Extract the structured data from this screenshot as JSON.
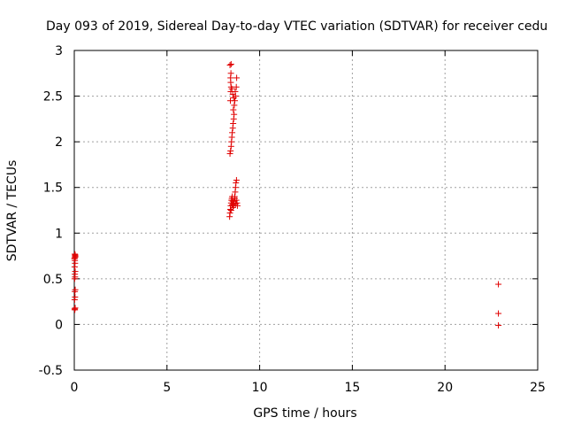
{
  "chart_data": {
    "type": "scatter",
    "title": "Day 093 of 2019, Sidereal Day-to-day VTEC variation (SDTVAR) for receiver cedu",
    "xlabel": "GPS time / hours",
    "ylabel": "SDTVAR / TECUs",
    "xlim": [
      0,
      25
    ],
    "ylim": [
      -0.5,
      3
    ],
    "xticks": [
      0,
      5,
      10,
      15,
      20,
      25
    ],
    "yticks": [
      -0.5,
      0,
      0.5,
      1,
      1.5,
      2,
      2.5,
      3
    ],
    "xtick_labels": [
      "0",
      "5",
      "10",
      "15",
      "20",
      "25"
    ],
    "ytick_labels": [
      "-0.5",
      "0",
      "0.5",
      "1",
      "1.5",
      "2",
      "2.5",
      "3"
    ],
    "grid": true,
    "marker": "plus",
    "marker_color": "#e00000",
    "series": [
      {
        "points": [
          [
            0.02,
            0.17
          ],
          [
            0.03,
            0.16
          ],
          [
            0.05,
            0.18
          ],
          [
            0.02,
            0.27
          ],
          [
            0.04,
            0.3
          ],
          [
            0.03,
            0.36
          ],
          [
            0.05,
            0.38
          ],
          [
            0.02,
            0.5
          ],
          [
            0.04,
            0.52
          ],
          [
            0.03,
            0.55
          ],
          [
            0.05,
            0.58
          ],
          [
            0.02,
            0.63
          ],
          [
            0.04,
            0.67
          ],
          [
            0.03,
            0.7
          ],
          [
            0.02,
            0.73
          ],
          [
            0.04,
            0.75
          ],
          [
            0.05,
            0.76
          ],
          [
            0.03,
            0.77
          ],
          [
            0.06,
            0.74
          ],
          [
            0.01,
            0.72
          ],
          [
            8.4,
            1.87
          ],
          [
            8.43,
            1.9
          ],
          [
            8.46,
            1.95
          ],
          [
            8.48,
            2.0
          ],
          [
            8.5,
            2.05
          ],
          [
            8.52,
            2.1
          ],
          [
            8.55,
            2.15
          ],
          [
            8.57,
            2.2
          ],
          [
            8.6,
            2.25
          ],
          [
            8.62,
            2.3
          ],
          [
            8.42,
            2.45
          ],
          [
            8.44,
            2.55
          ],
          [
            8.46,
            2.6
          ],
          [
            8.44,
            2.65
          ],
          [
            8.43,
            2.7
          ],
          [
            8.45,
            2.75
          ],
          [
            8.4,
            2.84
          ],
          [
            8.46,
            2.85
          ],
          [
            8.5,
            2.58
          ],
          [
            8.55,
            2.52
          ],
          [
            8.6,
            2.48
          ],
          [
            8.63,
            2.4
          ],
          [
            8.66,
            2.45
          ],
          [
            8.7,
            2.5
          ],
          [
            8.74,
            2.6
          ],
          [
            8.76,
            2.7
          ],
          [
            8.68,
            2.55
          ],
          [
            8.58,
            2.35
          ],
          [
            8.38,
            1.18
          ],
          [
            8.4,
            1.22
          ],
          [
            8.42,
            1.26
          ],
          [
            8.44,
            1.3
          ],
          [
            8.46,
            1.33
          ],
          [
            8.48,
            1.36
          ],
          [
            8.5,
            1.38
          ],
          [
            8.52,
            1.4
          ],
          [
            8.55,
            1.35
          ],
          [
            8.58,
            1.32
          ],
          [
            8.6,
            1.3
          ],
          [
            8.62,
            1.35
          ],
          [
            8.65,
            1.4
          ],
          [
            8.68,
            1.45
          ],
          [
            8.7,
            1.5
          ],
          [
            8.72,
            1.55
          ],
          [
            8.75,
            1.58
          ],
          [
            8.78,
            1.33
          ],
          [
            8.8,
            1.3
          ],
          [
            8.74,
            1.36
          ],
          [
            8.66,
            1.38
          ],
          [
            8.56,
            1.28
          ],
          [
            8.46,
            1.25
          ],
          [
            8.52,
            1.31
          ],
          [
            8.7,
            1.32
          ],
          [
            22.88,
            0.44
          ],
          [
            22.88,
            0.12
          ],
          [
            22.88,
            -0.01
          ]
        ]
      }
    ]
  }
}
